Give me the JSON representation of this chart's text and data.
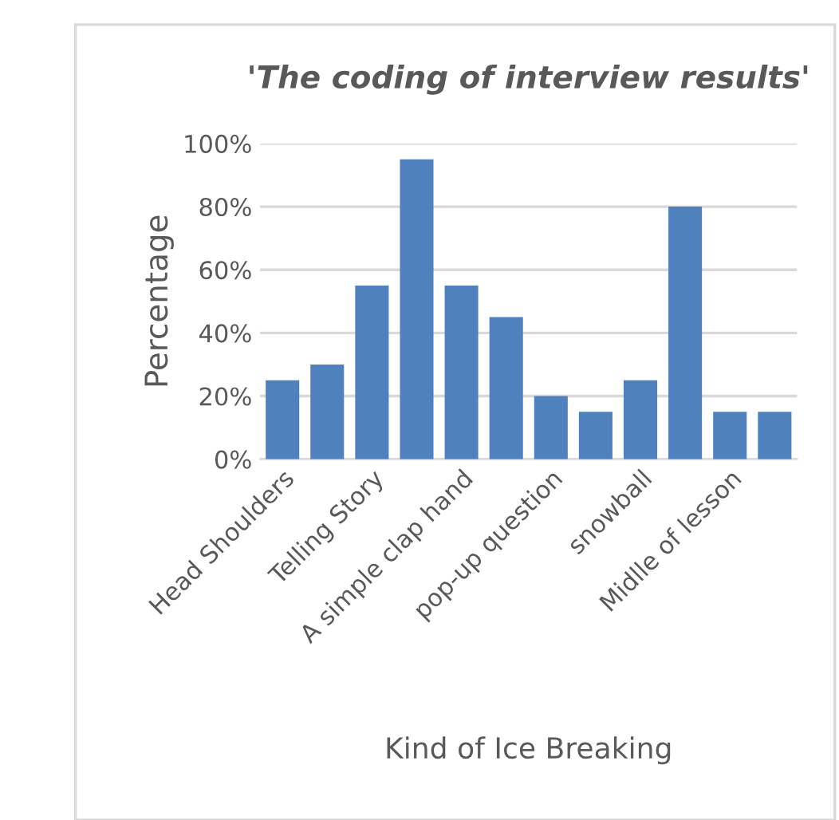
{
  "chart_data": {
    "type": "bar",
    "title": "'The coding of interview results'",
    "xlabel": "Kind of Ice Breaking",
    "ylabel": "Percentage",
    "categories": [
      "Head Shoulders",
      null,
      "Telling Story",
      null,
      "A simple clap hand",
      null,
      "pop-up question",
      null,
      "snowball",
      null,
      "Midlle of lesson",
      null
    ],
    "values": [
      25,
      30,
      55,
      95,
      55,
      45,
      20,
      15,
      25,
      80,
      15,
      15
    ],
    "color": "#4f81bd",
    "ylim": [
      0,
      100
    ],
    "yticks": [
      {
        "value": 0,
        "label": "0%"
      },
      {
        "value": 20,
        "label": "20%"
      },
      {
        "value": 40,
        "label": "40%"
      },
      {
        "value": 60,
        "label": "60%"
      },
      {
        "value": 80,
        "label": "80%"
      },
      {
        "value": 100,
        "label": "100%"
      }
    ],
    "grid": "y"
  }
}
